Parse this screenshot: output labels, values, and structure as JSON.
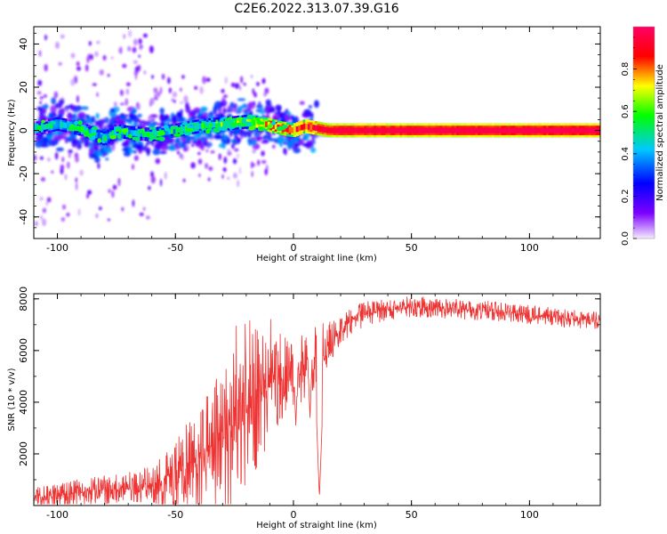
{
  "title": "C2E6.2022.313.07.39.G16",
  "colors": {
    "snr_line": "#ee3333",
    "axes": "#000000",
    "background": "#ffffff"
  },
  "chart_data": [
    {
      "type": "heatmap",
      "name": "spectrogram",
      "xlabel": "Height of straight line (km)",
      "ylabel": "Frequency (Hz)",
      "xlim": [
        -110,
        130
      ],
      "ylim": [
        -50,
        48
      ],
      "xticks": [
        "-100",
        "-50",
        "0",
        "50",
        "100"
      ],
      "yticks": [
        "-40",
        "-20",
        "0",
        "20",
        "40"
      ],
      "colorbar": {
        "label": "Normalized spectral amplitude",
        "range": [
          0.0,
          1.0
        ],
        "ticks": [
          "0.0",
          "0.2",
          "0.4",
          "0.6",
          "0.8"
        ],
        "colormap": [
          "#f5ecff",
          "#7d00ff",
          "#0000ff",
          "#00c8ff",
          "#00ff00",
          "#ffff00",
          "#ff0000",
          "#ff0064"
        ]
      },
      "ridge": {
        "description_points_km_hz": [
          [
            -108,
            1
          ],
          [
            -100,
            3
          ],
          [
            -95,
            2
          ],
          [
            -88,
            0
          ],
          [
            -80,
            -4
          ],
          [
            -75,
            0
          ],
          [
            -70,
            -1
          ],
          [
            -60,
            -2
          ],
          [
            -50,
            0
          ],
          [
            -40,
            2
          ],
          [
            -30,
            3
          ],
          [
            -20,
            4
          ],
          [
            -12,
            3
          ],
          [
            -5,
            1
          ],
          [
            0,
            0
          ],
          [
            5,
            2
          ],
          [
            10,
            1
          ],
          [
            15,
            0
          ],
          [
            130,
            0
          ]
        ],
        "amplitude_points": [
          [
            -110,
            0.45
          ],
          [
            -60,
            0.45
          ],
          [
            -20,
            0.6
          ],
          [
            -10,
            0.85
          ],
          [
            10,
            0.92
          ],
          [
            20,
            0.95
          ],
          [
            130,
            0.97
          ]
        ]
      }
    },
    {
      "type": "line",
      "name": "snr",
      "xlabel": "Height of straight line (km)",
      "ylabel": "SNR (10 * v/v)",
      "xlim": [
        -110,
        130
      ],
      "ylim": [
        0,
        8200
      ],
      "xticks": [
        "-100",
        "-50",
        "0",
        "50",
        "100"
      ],
      "yticks": [
        "2000",
        "4000",
        "6000",
        "8000"
      ],
      "envelope": {
        "x": [
          -110,
          -100,
          -90,
          -80,
          -70,
          -60,
          -50,
          -40,
          -30,
          -25,
          -20,
          -15,
          -10,
          -5,
          0,
          5,
          10,
          15,
          20,
          25,
          30,
          40,
          50,
          60,
          70,
          80,
          90,
          100,
          110,
          120,
          130
        ],
        "y": [
          300,
          400,
          500,
          600,
          700,
          800,
          1200,
          1800,
          2600,
          3000,
          3600,
          4000,
          4600,
          5000,
          5200,
          5500,
          5900,
          6200,
          6800,
          7200,
          7400,
          7600,
          7700,
          7650,
          7600,
          7550,
          7500,
          7400,
          7300,
          7200,
          7150
        ]
      },
      "noise_amplitude": {
        "x": [
          -110,
          -60,
          -40,
          -20,
          -5,
          10,
          20,
          40,
          130
        ],
        "y": [
          300,
          500,
          1500,
          2600,
          1200,
          900,
          400,
          300,
          250
        ]
      },
      "dips": [
        {
          "x": 11,
          "y": 300
        },
        {
          "x": 1,
          "y": 3100
        },
        {
          "x": 7,
          "y": 3400
        }
      ]
    }
  ]
}
